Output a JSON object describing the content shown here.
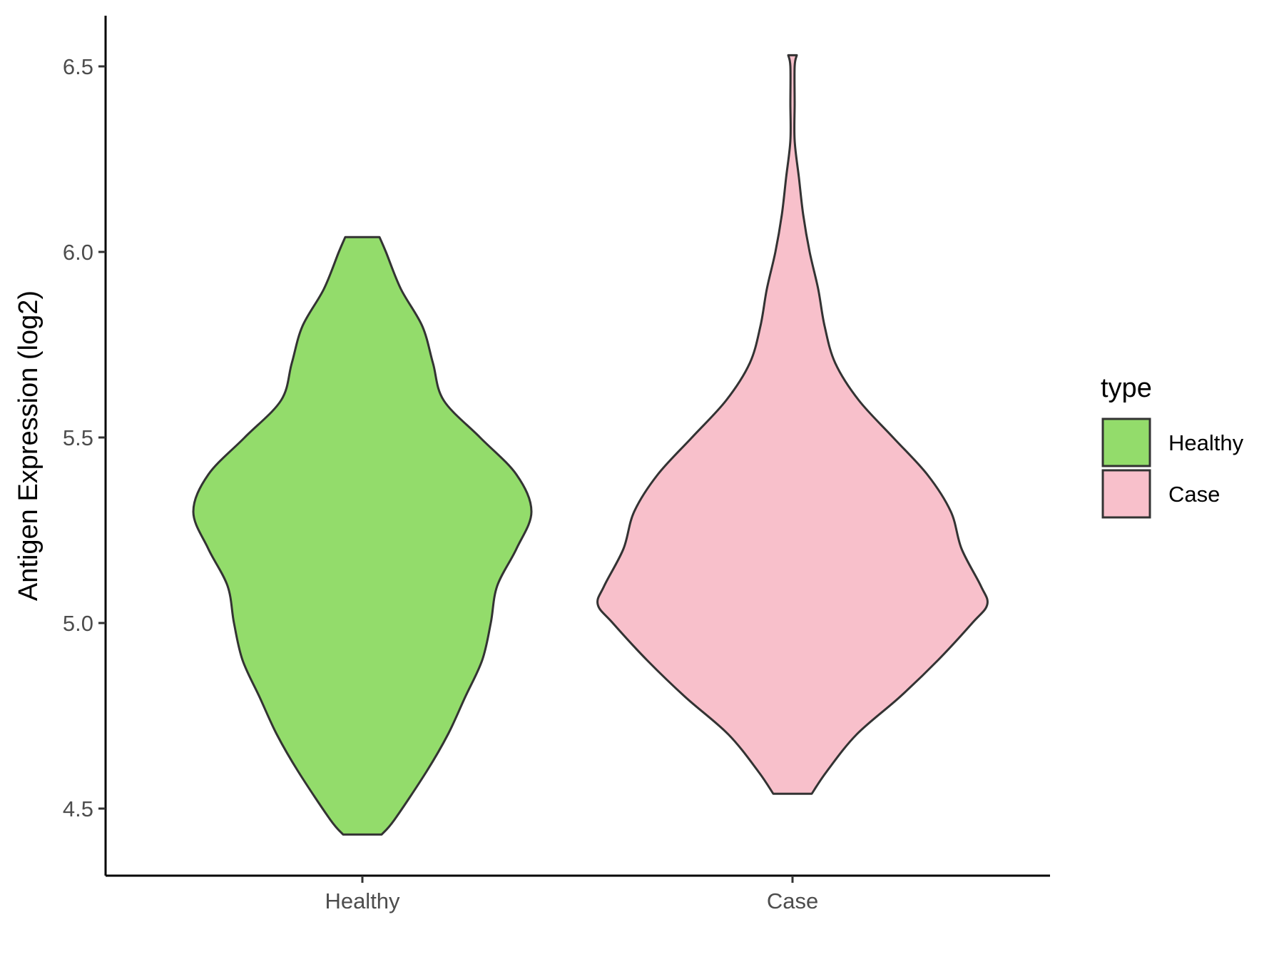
{
  "chart_data": {
    "type": "violin",
    "title": "",
    "xlabel": "",
    "ylabel": "Antigen Expression (log2)",
    "ylim": [
      4.33,
      6.63
    ],
    "yticks": [
      4.5,
      5.0,
      5.5,
      6.0,
      6.5
    ],
    "ytick_labels": [
      "4.5",
      "5.0",
      "5.5",
      "6.0",
      "6.5"
    ],
    "categories": [
      "Healthy",
      "Case"
    ],
    "legend": {
      "title": "type",
      "placement": "right",
      "entries": [
        "Healthy",
        "Case"
      ]
    },
    "grid": false,
    "series": [
      {
        "name": "Healthy",
        "color": "#93DC6B",
        "min": 4.43,
        "max": 6.04,
        "density": [
          [
            4.43,
            0.09
          ],
          [
            4.47,
            0.15
          ],
          [
            4.6,
            0.3
          ],
          [
            4.7,
            0.4
          ],
          [
            4.8,
            0.48
          ],
          [
            4.9,
            0.56
          ],
          [
            5.0,
            0.6
          ],
          [
            5.1,
            0.63
          ],
          [
            5.2,
            0.72
          ],
          [
            5.3,
            0.79
          ],
          [
            5.4,
            0.72
          ],
          [
            5.5,
            0.55
          ],
          [
            5.6,
            0.38
          ],
          [
            5.7,
            0.33
          ],
          [
            5.8,
            0.28
          ],
          [
            5.9,
            0.18
          ],
          [
            6.0,
            0.11
          ],
          [
            6.04,
            0.08
          ]
        ]
      },
      {
        "name": "Case",
        "color": "#F8C0CB",
        "min": 4.54,
        "max": 6.53,
        "density": [
          [
            4.54,
            0.09
          ],
          [
            4.6,
            0.16
          ],
          [
            4.7,
            0.3
          ],
          [
            4.8,
            0.5
          ],
          [
            4.9,
            0.68
          ],
          [
            5.0,
            0.84
          ],
          [
            5.05,
            0.91
          ],
          [
            5.1,
            0.88
          ],
          [
            5.2,
            0.79
          ],
          [
            5.3,
            0.74
          ],
          [
            5.4,
            0.63
          ],
          [
            5.5,
            0.47
          ],
          [
            5.6,
            0.31
          ],
          [
            5.7,
            0.2
          ],
          [
            5.8,
            0.15
          ],
          [
            5.9,
            0.12
          ],
          [
            6.0,
            0.08
          ],
          [
            6.1,
            0.05
          ],
          [
            6.2,
            0.03
          ],
          [
            6.3,
            0.01
          ],
          [
            6.4,
            0.01
          ],
          [
            6.5,
            0.01
          ],
          [
            6.53,
            0.02
          ]
        ]
      }
    ]
  }
}
